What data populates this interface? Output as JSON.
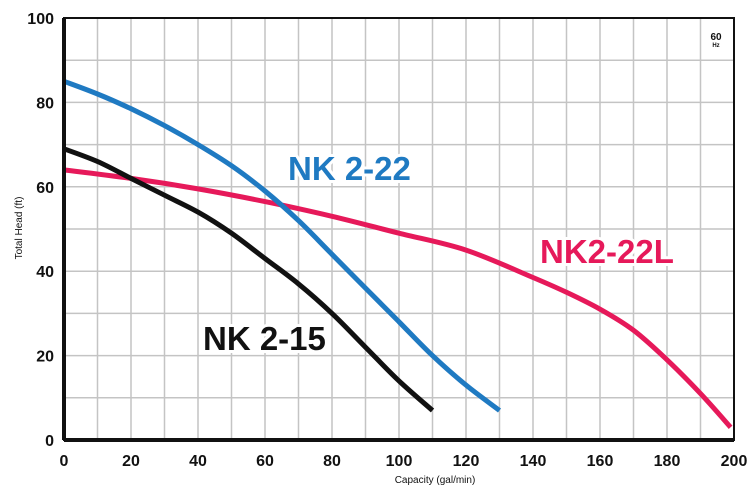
{
  "chart_data": {
    "type": "line",
    "title": "",
    "xlabel": "Capacity (gal/min)",
    "ylabel": "Total Head (ft)",
    "frequency": {
      "value": "60",
      "unit": "Hz"
    },
    "xlim": [
      0,
      200
    ],
    "ylim": [
      0,
      100
    ],
    "xticks": [
      0,
      20,
      40,
      60,
      80,
      100,
      120,
      140,
      160,
      180,
      200
    ],
    "yticks": [
      0,
      20,
      40,
      60,
      80,
      100
    ],
    "grid": true,
    "legend": "none",
    "series": [
      {
        "name": "NK 2-22",
        "color": "#1f7ac2",
        "x": [
          0,
          10,
          20,
          30,
          40,
          50,
          60,
          70,
          80,
          90,
          100,
          110,
          120,
          130
        ],
        "y": [
          85,
          82,
          78.5,
          74.5,
          70,
          65,
          59,
          52,
          44,
          36,
          28,
          20,
          13,
          7
        ]
      },
      {
        "name": "NK2-22L",
        "color": "#e6195a",
        "x": [
          0,
          20,
          40,
          60,
          80,
          100,
          120,
          140,
          150,
          160,
          170,
          180,
          190,
          199
        ],
        "y": [
          64,
          62,
          59.5,
          56.5,
          53,
          49,
          45,
          38.5,
          35,
          31,
          26,
          19,
          11,
          3
        ]
      },
      {
        "name": "NK 2-15",
        "color": "#111111",
        "x": [
          0,
          10,
          20,
          30,
          40,
          50,
          60,
          70,
          80,
          90,
          100,
          110
        ],
        "y": [
          69,
          66,
          62,
          58,
          54,
          49,
          43,
          37,
          30,
          22,
          14,
          7
        ]
      }
    ]
  }
}
